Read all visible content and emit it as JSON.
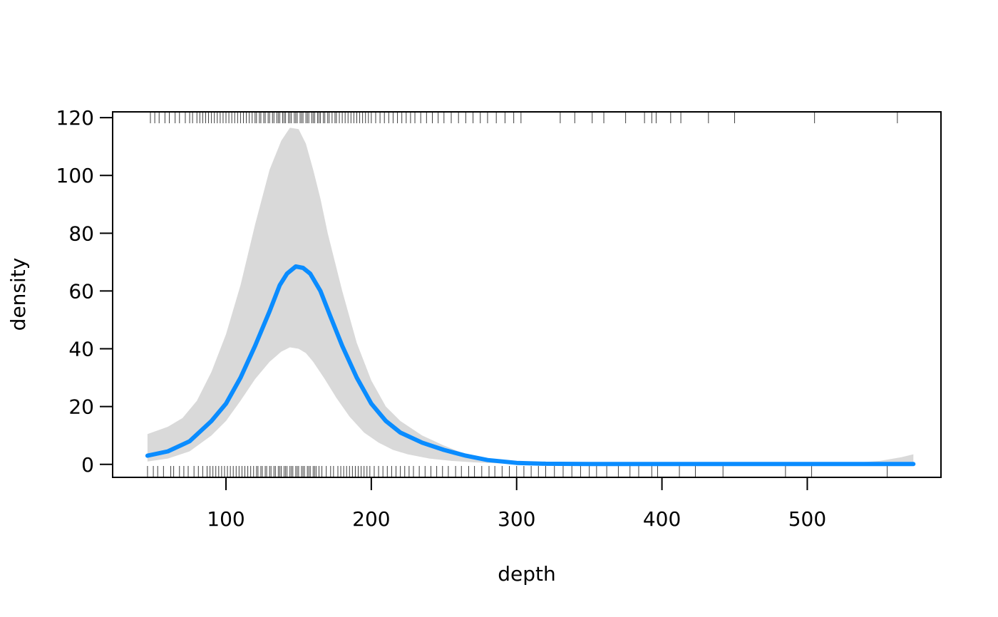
{
  "chart_data": {
    "type": "line",
    "title": "",
    "xlabel": "depth",
    "ylabel": "density",
    "xlim": [
      22,
      592
    ],
    "ylim": [
      -4.5,
      122
    ],
    "x_ticks": [
      100,
      200,
      300,
      400,
      500
    ],
    "y_ticks": [
      0,
      20,
      40,
      60,
      80,
      100,
      120
    ],
    "x_tick_labels": [
      "100",
      "200",
      "300",
      "400",
      "500"
    ],
    "y_tick_labels": [
      "0",
      "20",
      "40",
      "60",
      "80",
      "100",
      "120"
    ],
    "grid": false,
    "legend": "none",
    "colors": {
      "line": "#0a8cff",
      "band": "#d9d9d9",
      "rug": "#000000"
    },
    "series": [
      {
        "role": "estimate",
        "x": [
          46,
          60,
          75,
          90,
          100,
          110,
          120,
          130,
          137,
          142,
          148,
          153,
          158,
          165,
          172,
          180,
          190,
          200,
          210,
          220,
          235,
          250,
          265,
          280,
          300,
          320,
          350,
          400,
          450,
          500,
          550,
          573
        ],
        "y": [
          3,
          4.5,
          8,
          15,
          21,
          30,
          41,
          53,
          62,
          66,
          68.5,
          68,
          66,
          60,
          51,
          41,
          30,
          21,
          15,
          11,
          7.5,
          5,
          3,
          1.5,
          0.5,
          0.2,
          0.1,
          0.1,
          0.1,
          0.1,
          0.1,
          0.1
        ]
      },
      {
        "role": "upper",
        "x": [
          46,
          60,
          70,
          80,
          90,
          100,
          110,
          120,
          130,
          138,
          144,
          150,
          155,
          160,
          165,
          170,
          180,
          190,
          200,
          210,
          220,
          235,
          250,
          265,
          280,
          300,
          320,
          350,
          400,
          450,
          500,
          530,
          550,
          565,
          573
        ],
        "y": [
          10.5,
          13,
          16,
          22,
          32,
          45,
          62,
          83,
          102,
          112,
          116.5,
          116,
          111,
          102,
          92,
          80,
          60,
          42,
          29,
          20,
          15,
          10,
          6.5,
          3.5,
          1.5,
          0.5,
          0.2,
          0.1,
          0.1,
          0.1,
          0.2,
          0.5,
          1.2,
          2.5,
          3.5
        ]
      },
      {
        "role": "lower",
        "x": [
          46,
          60,
          75,
          90,
          100,
          110,
          120,
          130,
          138,
          144,
          150,
          155,
          160,
          168,
          176,
          185,
          195,
          205,
          215,
          225,
          240,
          255,
          270,
          285,
          300,
          320,
          350,
          400,
          450,
          500,
          573
        ],
        "y": [
          1,
          2,
          4.5,
          10,
          15,
          22,
          29.5,
          35.5,
          39,
          40.5,
          40,
          38.5,
          35.5,
          29.5,
          23,
          16.5,
          11,
          7.5,
          5,
          3.5,
          2,
          1.2,
          0.7,
          0.4,
          0.1,
          0,
          0,
          0,
          0,
          0,
          0
        ]
      }
    ],
    "rug_top_x": [
      48,
      51,
      54,
      58,
      61,
      65,
      68,
      72,
      75,
      77,
      80,
      82,
      84,
      86,
      88,
      90,
      92,
      94,
      96,
      98,
      100,
      102,
      104,
      106,
      108,
      110,
      112,
      114,
      116,
      118,
      120,
      121,
      123,
      124,
      126,
      127,
      129,
      130,
      132,
      133,
      135,
      136,
      137,
      139,
      140,
      141,
      143,
      144,
      145,
      147,
      148,
      149,
      151,
      152,
      153,
      155,
      156,
      157,
      159,
      160,
      161,
      163,
      164,
      165,
      167,
      168,
      170,
      171,
      173,
      175,
      176,
      178,
      180,
      182,
      184,
      186,
      188,
      190,
      192,
      194,
      196,
      198,
      200,
      203,
      206,
      209,
      212,
      215,
      218,
      221,
      224,
      227,
      230,
      234,
      238,
      242,
      246,
      250,
      255,
      260,
      265,
      270,
      275,
      280,
      286,
      292,
      298,
      303,
      330,
      340,
      352,
      360,
      375,
      388,
      393,
      396,
      406,
      413,
      432,
      450,
      505,
      562
    ],
    "rug_bottom_x": [
      46,
      50,
      53,
      57,
      62,
      64,
      68,
      71,
      74,
      78,
      81,
      84,
      87,
      89,
      91,
      93,
      95,
      97,
      99,
      101,
      103,
      105,
      107,
      109,
      111,
      113,
      115,
      117,
      119,
      121,
      122,
      124,
      125,
      127,
      128,
      130,
      131,
      133,
      134,
      136,
      137,
      138,
      140,
      141,
      142,
      144,
      145,
      146,
      148,
      149,
      150,
      152,
      153,
      154,
      156,
      157,
      158,
      160,
      161,
      162,
      164,
      166,
      169,
      172,
      174,
      177,
      179,
      181,
      183,
      185,
      187,
      189,
      191,
      193,
      195,
      197,
      199,
      202,
      205,
      208,
      211,
      214,
      217,
      220,
      223,
      226,
      229,
      233,
      237,
      241,
      245,
      249,
      253,
      258,
      262,
      267,
      271,
      276,
      281,
      285,
      290,
      295,
      300,
      305,
      310,
      315,
      320,
      326,
      332,
      338,
      344,
      350,
      355,
      362,
      370,
      378,
      384,
      393,
      397,
      412,
      423,
      442,
      485,
      503,
      555
    ]
  }
}
